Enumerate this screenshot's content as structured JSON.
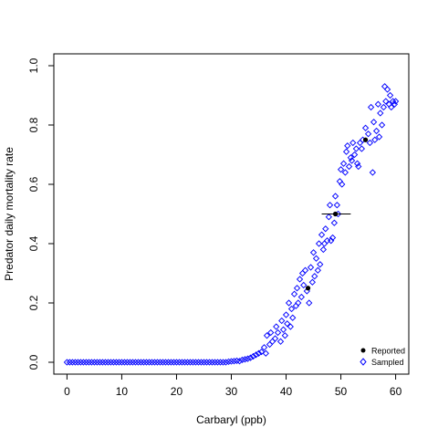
{
  "chart_data": {
    "type": "scatter",
    "xlabel": "Carbaryl (ppb)",
    "ylabel": "Predator daily mortality rate",
    "xlim": [
      -2.4,
      62.4
    ],
    "ylim": [
      -0.04,
      1.04
    ],
    "x_ticks": [
      "0",
      "10",
      "20",
      "30",
      "40",
      "50",
      "60"
    ],
    "x_tick_values": [
      0,
      10,
      20,
      30,
      40,
      50,
      60
    ],
    "y_ticks": [
      "0.0",
      "0.2",
      "0.4",
      "0.6",
      "0.8",
      "1.0"
    ],
    "y_tick_values": [
      0,
      0.2,
      0.4,
      0.6,
      0.8,
      1.0
    ],
    "grid": false,
    "legend_position": "bottom-right",
    "series": [
      {
        "name": "Reported",
        "marker": "filled-circle",
        "color": "#000000",
        "points": [
          {
            "x": 44,
            "y": 0.25,
            "xerr": null
          },
          {
            "x": 49,
            "y": 0.5,
            "xerr": [
              46.5,
              51.8
            ]
          },
          {
            "x": 54.5,
            "y": 0.75,
            "xerr": null
          }
        ]
      },
      {
        "name": "Sampled",
        "marker": "open-diamond",
        "color": "#0000ff",
        "points": [
          [
            0,
            0
          ],
          [
            0.5,
            0
          ],
          [
            1,
            0
          ],
          [
            1.5,
            0
          ],
          [
            2,
            0
          ],
          [
            2.5,
            0
          ],
          [
            3,
            0
          ],
          [
            3.5,
            0
          ],
          [
            4,
            0
          ],
          [
            4.5,
            0
          ],
          [
            5,
            0
          ],
          [
            5.5,
            0
          ],
          [
            6,
            0
          ],
          [
            6.5,
            0
          ],
          [
            7,
            0
          ],
          [
            7.5,
            0
          ],
          [
            8,
            0
          ],
          [
            8.5,
            0
          ],
          [
            9,
            0
          ],
          [
            9.5,
            0
          ],
          [
            10,
            0
          ],
          [
            10.5,
            0
          ],
          [
            11,
            0
          ],
          [
            11.5,
            0
          ],
          [
            12,
            0
          ],
          [
            12.5,
            0
          ],
          [
            13,
            0
          ],
          [
            13.5,
            0
          ],
          [
            14,
            0
          ],
          [
            14.5,
            0
          ],
          [
            15,
            0
          ],
          [
            15.5,
            0
          ],
          [
            16,
            0
          ],
          [
            16.5,
            0
          ],
          [
            17,
            0
          ],
          [
            17.5,
            0
          ],
          [
            18,
            0
          ],
          [
            18.5,
            0
          ],
          [
            19,
            0
          ],
          [
            19.5,
            0
          ],
          [
            20,
            0
          ],
          [
            20.5,
            0
          ],
          [
            21,
            0
          ],
          [
            21.5,
            0
          ],
          [
            22,
            0
          ],
          [
            22.5,
            0
          ],
          [
            23,
            0
          ],
          [
            23.5,
            0
          ],
          [
            24,
            0
          ],
          [
            24.5,
            0
          ],
          [
            25,
            0
          ],
          [
            25.5,
            0
          ],
          [
            26,
            0
          ],
          [
            26.5,
            0
          ],
          [
            27,
            0
          ],
          [
            27.5,
            0
          ],
          [
            28,
            0
          ],
          [
            28.5,
            0
          ],
          [
            29,
            0
          ],
          [
            29.5,
            0.002
          ],
          [
            30,
            0.003
          ],
          [
            30.5,
            0.004
          ],
          [
            31,
            0.005
          ],
          [
            31.5,
            0.004
          ],
          [
            32,
            0.008
          ],
          [
            32.5,
            0.01
          ],
          [
            33,
            0.012
          ],
          [
            33.5,
            0.015
          ],
          [
            34,
            0.02
          ],
          [
            34.5,
            0.025
          ],
          [
            35,
            0.03
          ],
          [
            35.5,
            0.035
          ],
          [
            36,
            0.05
          ],
          [
            36.3,
            0.03
          ],
          [
            36.5,
            0.09
          ],
          [
            37,
            0.06
          ],
          [
            37.2,
            0.1
          ],
          [
            37.5,
            0.07
          ],
          [
            38,
            0.08
          ],
          [
            38.2,
            0.12
          ],
          [
            38.5,
            0.1
          ],
          [
            39,
            0.07
          ],
          [
            39.2,
            0.14
          ],
          [
            39.5,
            0.11
          ],
          [
            39.8,
            0.09
          ],
          [
            40,
            0.16
          ],
          [
            40.2,
            0.13
          ],
          [
            40.5,
            0.2
          ],
          [
            40.8,
            0.12
          ],
          [
            41,
            0.18
          ],
          [
            41.2,
            0.15
          ],
          [
            41.5,
            0.23
          ],
          [
            41.8,
            0.19
          ],
          [
            42,
            0.25
          ],
          [
            42.2,
            0.2
          ],
          [
            42.5,
            0.28
          ],
          [
            42.8,
            0.22
          ],
          [
            43,
            0.3
          ],
          [
            43.2,
            0.26
          ],
          [
            43.5,
            0.31
          ],
          [
            43.8,
            0.24
          ],
          [
            44.2,
            0.2
          ],
          [
            44.5,
            0.32
          ],
          [
            44.8,
            0.27
          ],
          [
            45,
            0.37
          ],
          [
            45.2,
            0.29
          ],
          [
            45.5,
            0.35
          ],
          [
            45.8,
            0.31
          ],
          [
            46,
            0.4
          ],
          [
            46.2,
            0.33
          ],
          [
            46.5,
            0.43
          ],
          [
            46.8,
            0.38
          ],
          [
            47,
            0.4
          ],
          [
            47.2,
            0.45
          ],
          [
            47.5,
            0.41
          ],
          [
            47.8,
            0.49
          ],
          [
            48,
            0.53
          ],
          [
            48.2,
            0.41
          ],
          [
            48.5,
            0.42
          ],
          [
            48.8,
            0.47
          ],
          [
            49,
            0.56
          ],
          [
            49.3,
            0.53
          ],
          [
            49.5,
            0.5
          ],
          [
            49.8,
            0.61
          ],
          [
            50,
            0.65
          ],
          [
            50.2,
            0.6
          ],
          [
            50.5,
            0.67
          ],
          [
            50.8,
            0.64
          ],
          [
            51,
            0.71
          ],
          [
            51.2,
            0.73
          ],
          [
            51.5,
            0.66
          ],
          [
            51.8,
            0.69
          ],
          [
            52,
            0.68
          ],
          [
            52.2,
            0.74
          ],
          [
            52.5,
            0.7
          ],
          [
            52.8,
            0.72
          ],
          [
            53,
            0.67
          ],
          [
            53.2,
            0.66
          ],
          [
            53.5,
            0.74
          ],
          [
            53.8,
            0.72
          ],
          [
            54,
            0.75
          ],
          [
            54.5,
            0.79
          ],
          [
            55,
            0.77
          ],
          [
            55.3,
            0.74
          ],
          [
            55.5,
            0.86
          ],
          [
            55.8,
            0.64
          ],
          [
            56,
            0.81
          ],
          [
            56.2,
            0.75
          ],
          [
            56.5,
            0.78
          ],
          [
            56.8,
            0.87
          ],
          [
            57,
            0.76
          ],
          [
            57.2,
            0.84
          ],
          [
            57.5,
            0.8
          ],
          [
            57.8,
            0.86
          ],
          [
            58,
            0.93
          ],
          [
            58.2,
            0.88
          ],
          [
            58.5,
            0.92
          ],
          [
            58.8,
            0.87
          ],
          [
            59,
            0.9
          ],
          [
            59.2,
            0.86
          ],
          [
            59.5,
            0.88
          ],
          [
            59.8,
            0.87
          ],
          [
            60,
            0.88
          ]
        ]
      }
    ]
  }
}
